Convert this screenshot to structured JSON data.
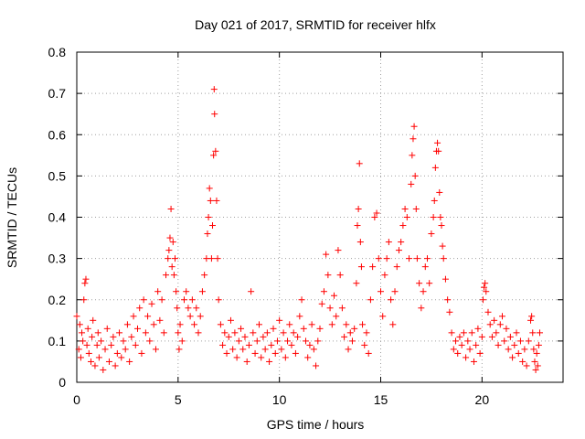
{
  "chart_data": {
    "type": "scatter",
    "title": "Day 021 of 2017, SRMTID for receiver hlfx",
    "xlabel": "GPS time / hours",
    "ylabel": "SRMTID / TECUs",
    "xlim": [
      0,
      24
    ],
    "ylim": [
      0,
      0.8
    ],
    "xticks": [
      0,
      5,
      10,
      15,
      20
    ],
    "xtick_labels": [
      "0",
      "5",
      "10",
      "15",
      "20"
    ],
    "yticks": [
      0,
      0.1,
      0.2,
      0.3,
      0.4,
      0.5,
      0.6,
      0.7,
      0.8
    ],
    "ytick_labels": [
      "0",
      "0.1",
      "0.2",
      "0.3",
      "0.4",
      "0.5",
      "0.6",
      "0.7",
      "0.8"
    ],
    "grid": true,
    "marker": "plus",
    "color": "#ff0000",
    "series": [
      {
        "name": "SRMTID",
        "points": [
          [
            0.0,
            0.16
          ],
          [
            0.1,
            0.08
          ],
          [
            0.15,
            0.14
          ],
          [
            0.2,
            0.06
          ],
          [
            0.25,
            0.12
          ],
          [
            0.3,
            0.1
          ],
          [
            0.35,
            0.2
          ],
          [
            0.4,
            0.24
          ],
          [
            0.45,
            0.25
          ],
          [
            0.5,
            0.09
          ],
          [
            0.55,
            0.13
          ],
          [
            0.6,
            0.07
          ],
          [
            0.7,
            0.05
          ],
          [
            0.75,
            0.11
          ],
          [
            0.8,
            0.15
          ],
          [
            0.9,
            0.04
          ],
          [
            1.0,
            0.09
          ],
          [
            1.05,
            0.12
          ],
          [
            1.1,
            0.06
          ],
          [
            1.2,
            0.1
          ],
          [
            1.3,
            0.03
          ],
          [
            1.4,
            0.08
          ],
          [
            1.5,
            0.13
          ],
          [
            1.6,
            0.05
          ],
          [
            1.7,
            0.09
          ],
          [
            1.8,
            0.11
          ],
          [
            1.9,
            0.04
          ],
          [
            2.0,
            0.07
          ],
          [
            2.1,
            0.12
          ],
          [
            2.2,
            0.06
          ],
          [
            2.3,
            0.1
          ],
          [
            2.4,
            0.08
          ],
          [
            2.5,
            0.14
          ],
          [
            2.6,
            0.05
          ],
          [
            2.7,
            0.11
          ],
          [
            2.8,
            0.16
          ],
          [
            2.9,
            0.09
          ],
          [
            3.0,
            0.13
          ],
          [
            3.1,
            0.18
          ],
          [
            3.2,
            0.07
          ],
          [
            3.3,
            0.2
          ],
          [
            3.4,
            0.12
          ],
          [
            3.5,
            0.16
          ],
          [
            3.6,
            0.1
          ],
          [
            3.7,
            0.19
          ],
          [
            3.8,
            0.14
          ],
          [
            3.9,
            0.08
          ],
          [
            4.0,
            0.22
          ],
          [
            4.1,
            0.15
          ],
          [
            4.2,
            0.2
          ],
          [
            4.3,
            0.12
          ],
          [
            4.4,
            0.26
          ],
          [
            4.5,
            0.3
          ],
          [
            4.55,
            0.32
          ],
          [
            4.6,
            0.35
          ],
          [
            4.65,
            0.42
          ],
          [
            4.7,
            0.28
          ],
          [
            4.75,
            0.34
          ],
          [
            4.8,
            0.26
          ],
          [
            4.85,
            0.3
          ],
          [
            4.9,
            0.22
          ],
          [
            4.95,
            0.18
          ],
          [
            5.0,
            0.12
          ],
          [
            5.05,
            0.08
          ],
          [
            5.1,
            0.14
          ],
          [
            5.2,
            0.1
          ],
          [
            5.3,
            0.2
          ],
          [
            5.4,
            0.22
          ],
          [
            5.5,
            0.18
          ],
          [
            5.6,
            0.16
          ],
          [
            5.7,
            0.2
          ],
          [
            5.8,
            0.14
          ],
          [
            5.9,
            0.18
          ],
          [
            6.0,
            0.12
          ],
          [
            6.1,
            0.16
          ],
          [
            6.2,
            0.22
          ],
          [
            6.3,
            0.26
          ],
          [
            6.4,
            0.3
          ],
          [
            6.45,
            0.36
          ],
          [
            6.5,
            0.4
          ],
          [
            6.55,
            0.47
          ],
          [
            6.6,
            0.44
          ],
          [
            6.65,
            0.3
          ],
          [
            6.7,
            0.38
          ],
          [
            6.75,
            0.55
          ],
          [
            6.78,
            0.71
          ],
          [
            6.8,
            0.65
          ],
          [
            6.85,
            0.56
          ],
          [
            6.9,
            0.44
          ],
          [
            6.95,
            0.3
          ],
          [
            7.0,
            0.2
          ],
          [
            7.1,
            0.14
          ],
          [
            7.2,
            0.09
          ],
          [
            7.3,
            0.12
          ],
          [
            7.4,
            0.07
          ],
          [
            7.5,
            0.11
          ],
          [
            7.6,
            0.15
          ],
          [
            7.7,
            0.08
          ],
          [
            7.8,
            0.12
          ],
          [
            7.9,
            0.06
          ],
          [
            8.0,
            0.1
          ],
          [
            8.1,
            0.13
          ],
          [
            8.2,
            0.08
          ],
          [
            8.3,
            0.11
          ],
          [
            8.4,
            0.05
          ],
          [
            8.5,
            0.09
          ],
          [
            8.6,
            0.22
          ],
          [
            8.7,
            0.12
          ],
          [
            8.8,
            0.07
          ],
          [
            8.9,
            0.1
          ],
          [
            9.0,
            0.14
          ],
          [
            9.1,
            0.06
          ],
          [
            9.2,
            0.11
          ],
          [
            9.3,
            0.08
          ],
          [
            9.4,
            0.12
          ],
          [
            9.5,
            0.05
          ],
          [
            9.6,
            0.09
          ],
          [
            9.7,
            0.13
          ],
          [
            9.8,
            0.07
          ],
          [
            9.9,
            0.1
          ],
          [
            10.0,
            0.15
          ],
          [
            10.1,
            0.08
          ],
          [
            10.2,
            0.12
          ],
          [
            10.3,
            0.06
          ],
          [
            10.4,
            0.1
          ],
          [
            10.5,
            0.14
          ],
          [
            10.6,
            0.09
          ],
          [
            10.7,
            0.12
          ],
          [
            10.8,
            0.07
          ],
          [
            10.9,
            0.11
          ],
          [
            11.0,
            0.16
          ],
          [
            11.1,
            0.2
          ],
          [
            11.2,
            0.13
          ],
          [
            11.3,
            0.1
          ],
          [
            11.4,
            0.06
          ],
          [
            11.5,
            0.09
          ],
          [
            11.6,
            0.14
          ],
          [
            11.7,
            0.08
          ],
          [
            11.8,
            0.04
          ],
          [
            11.9,
            0.1
          ],
          [
            12.0,
            0.13
          ],
          [
            12.1,
            0.19
          ],
          [
            12.2,
            0.22
          ],
          [
            12.3,
            0.31
          ],
          [
            12.4,
            0.26
          ],
          [
            12.5,
            0.18
          ],
          [
            12.6,
            0.14
          ],
          [
            12.7,
            0.21
          ],
          [
            12.8,
            0.16
          ],
          [
            12.9,
            0.32
          ],
          [
            13.0,
            0.26
          ],
          [
            13.1,
            0.18
          ],
          [
            13.2,
            0.11
          ],
          [
            13.3,
            0.14
          ],
          [
            13.4,
            0.08
          ],
          [
            13.5,
            0.12
          ],
          [
            13.6,
            0.1
          ],
          [
            13.7,
            0.13
          ],
          [
            13.8,
            0.24
          ],
          [
            13.85,
            0.38
          ],
          [
            13.9,
            0.42
          ],
          [
            13.95,
            0.53
          ],
          [
            14.0,
            0.34
          ],
          [
            14.05,
            0.28
          ],
          [
            14.1,
            0.14
          ],
          [
            14.2,
            0.09
          ],
          [
            14.3,
            0.12
          ],
          [
            14.4,
            0.07
          ],
          [
            14.5,
            0.2
          ],
          [
            14.6,
            0.28
          ],
          [
            14.7,
            0.4
          ],
          [
            14.8,
            0.41
          ],
          [
            14.9,
            0.3
          ],
          [
            15.0,
            0.22
          ],
          [
            15.1,
            0.16
          ],
          [
            15.2,
            0.26
          ],
          [
            15.3,
            0.3
          ],
          [
            15.4,
            0.34
          ],
          [
            15.5,
            0.2
          ],
          [
            15.6,
            0.14
          ],
          [
            15.7,
            0.22
          ],
          [
            15.8,
            0.28
          ],
          [
            15.9,
            0.32
          ],
          [
            16.0,
            0.34
          ],
          [
            16.1,
            0.38
          ],
          [
            16.2,
            0.42
          ],
          [
            16.3,
            0.4
          ],
          [
            16.4,
            0.3
          ],
          [
            16.5,
            0.48
          ],
          [
            16.55,
            0.55
          ],
          [
            16.6,
            0.59
          ],
          [
            16.65,
            0.62
          ],
          [
            16.7,
            0.5
          ],
          [
            16.75,
            0.42
          ],
          [
            16.8,
            0.3
          ],
          [
            16.9,
            0.24
          ],
          [
            17.0,
            0.18
          ],
          [
            17.1,
            0.22
          ],
          [
            17.2,
            0.28
          ],
          [
            17.3,
            0.3
          ],
          [
            17.4,
            0.24
          ],
          [
            17.5,
            0.36
          ],
          [
            17.6,
            0.4
          ],
          [
            17.65,
            0.44
          ],
          [
            17.7,
            0.52
          ],
          [
            17.75,
            0.56
          ],
          [
            17.8,
            0.58
          ],
          [
            17.85,
            0.56
          ],
          [
            17.9,
            0.46
          ],
          [
            17.95,
            0.4
          ],
          [
            18.0,
            0.38
          ],
          [
            18.05,
            0.33
          ],
          [
            18.1,
            0.3
          ],
          [
            18.2,
            0.25
          ],
          [
            18.3,
            0.2
          ],
          [
            18.4,
            0.17
          ],
          [
            18.5,
            0.12
          ],
          [
            18.6,
            0.08
          ],
          [
            18.7,
            0.1
          ],
          [
            18.8,
            0.07
          ],
          [
            18.9,
            0.11
          ],
          [
            19.0,
            0.09
          ],
          [
            19.1,
            0.12
          ],
          [
            19.2,
            0.06
          ],
          [
            19.3,
            0.1
          ],
          [
            19.4,
            0.08
          ],
          [
            19.5,
            0.12
          ],
          [
            19.6,
            0.05
          ],
          [
            19.7,
            0.09
          ],
          [
            19.8,
            0.13
          ],
          [
            19.9,
            0.07
          ],
          [
            20.0,
            0.11
          ],
          [
            20.05,
            0.2
          ],
          [
            20.1,
            0.23
          ],
          [
            20.15,
            0.24
          ],
          [
            20.2,
            0.22
          ],
          [
            20.3,
            0.17
          ],
          [
            20.4,
            0.14
          ],
          [
            20.5,
            0.11
          ],
          [
            20.6,
            0.15
          ],
          [
            20.7,
            0.12
          ],
          [
            20.8,
            0.09
          ],
          [
            20.9,
            0.14
          ],
          [
            21.0,
            0.16
          ],
          [
            21.1,
            0.1
          ],
          [
            21.2,
            0.13
          ],
          [
            21.3,
            0.08
          ],
          [
            21.4,
            0.11
          ],
          [
            21.5,
            0.06
          ],
          [
            21.6,
            0.09
          ],
          [
            21.7,
            0.12
          ],
          [
            21.8,
            0.07
          ],
          [
            21.9,
            0.1
          ],
          [
            22.0,
            0.05
          ],
          [
            22.1,
            0.08
          ],
          [
            22.2,
            0.04
          ],
          [
            22.3,
            0.1
          ],
          [
            22.4,
            0.15
          ],
          [
            22.45,
            0.16
          ],
          [
            22.5,
            0.12
          ],
          [
            22.55,
            0.08
          ],
          [
            22.6,
            0.05
          ],
          [
            22.65,
            0.03
          ],
          [
            22.7,
            0.07
          ],
          [
            22.75,
            0.04
          ],
          [
            22.8,
            0.09
          ],
          [
            22.85,
            0.12
          ]
        ]
      }
    ]
  }
}
